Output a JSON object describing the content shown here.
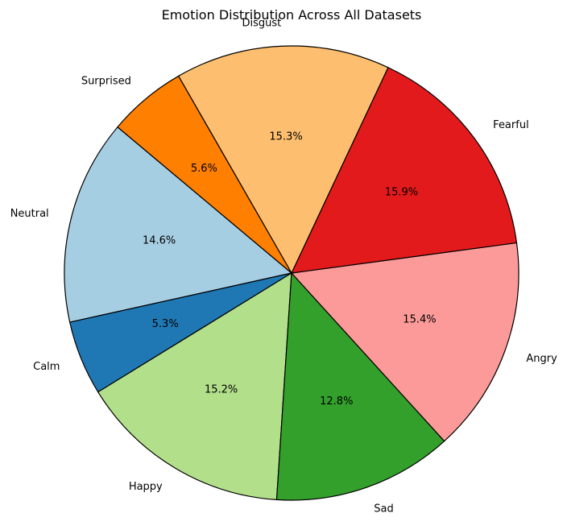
{
  "chart_data": {
    "type": "pie",
    "title": "Emotion Distribution Across All Datasets",
    "start_angle_deg": 140,
    "direction": "counterclockwise",
    "slices": [
      {
        "label": "Neutral",
        "value": 14.6,
        "pct_text": "14.6%",
        "color": "#a6cee3"
      },
      {
        "label": "Calm",
        "value": 5.3,
        "pct_text": "5.3%",
        "color": "#1f78b4"
      },
      {
        "label": "Happy",
        "value": 15.2,
        "pct_text": "15.2%",
        "color": "#b2df8a"
      },
      {
        "label": "Sad",
        "value": 12.8,
        "pct_text": "12.8%",
        "color": "#33a02c"
      },
      {
        "label": "Angry",
        "value": 15.4,
        "pct_text": "15.4%",
        "color": "#fb9a99"
      },
      {
        "label": "Fearful",
        "value": 15.9,
        "pct_text": "15.9%",
        "color": "#e31a1c"
      },
      {
        "label": "Disgust",
        "value": 15.3,
        "pct_text": "15.3%",
        "color": "#fdbf6f"
      },
      {
        "label": "Surprised",
        "value": 5.6,
        "pct_text": "5.6%",
        "color": "#ff7f00"
      }
    ]
  }
}
